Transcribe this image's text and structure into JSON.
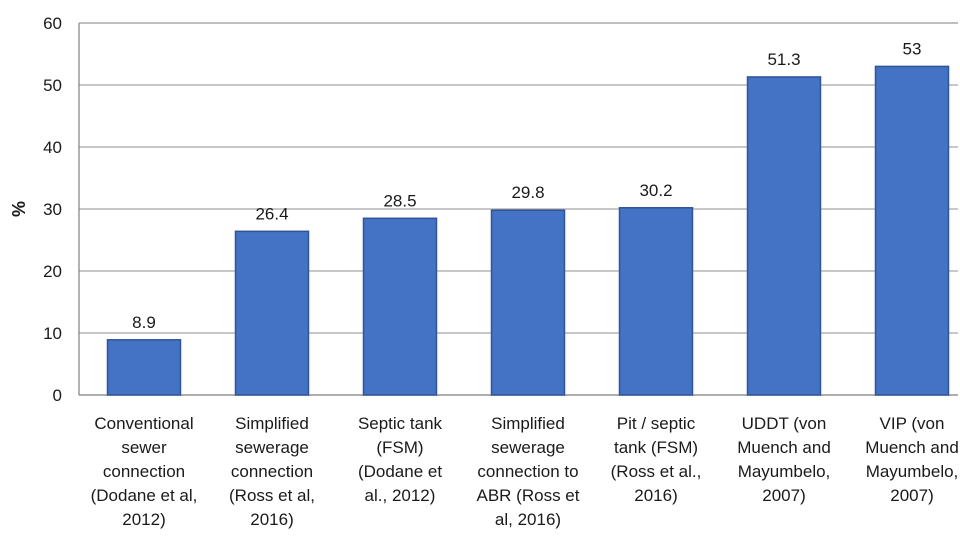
{
  "chart_data": {
    "type": "bar",
    "title": "",
    "xlabel": "",
    "ylabel": "%",
    "ylim": [
      0,
      60
    ],
    "yticks": [
      0,
      10,
      20,
      30,
      40,
      50,
      60
    ],
    "grid": true,
    "bar_color": "#4472C4",
    "bar_edge_color": "#2F5597",
    "grid_color": "#a6a6a6",
    "categories": [
      [
        "Conventional",
        "sewer",
        "connection",
        "(Dodane et al,",
        "2012)"
      ],
      [
        "Simplified",
        "sewerage",
        "connection",
        "(Ross et al,",
        "2016)"
      ],
      [
        "Septic tank",
        "(FSM)",
        "(Dodane et",
        "al., 2012)"
      ],
      [
        "Simplified",
        "sewerage",
        "connection to",
        "ABR (Ross et",
        "al, 2016)"
      ],
      [
        "Pit / septic",
        "tank (FSM)",
        "(Ross et al.,",
        "2016)"
      ],
      [
        "UDDT (von",
        "Muench and",
        "Mayumbelo,",
        "2007)"
      ],
      [
        "VIP (von",
        "Muench and",
        "Mayumbelo,",
        "2007)"
      ]
    ],
    "values": [
      8.9,
      26.4,
      28.5,
      29.8,
      30.2,
      51.3,
      53
    ],
    "data_labels": [
      "8.9",
      "26.4",
      "28.5",
      "29.8",
      "30.2",
      "51.3",
      "53"
    ]
  }
}
